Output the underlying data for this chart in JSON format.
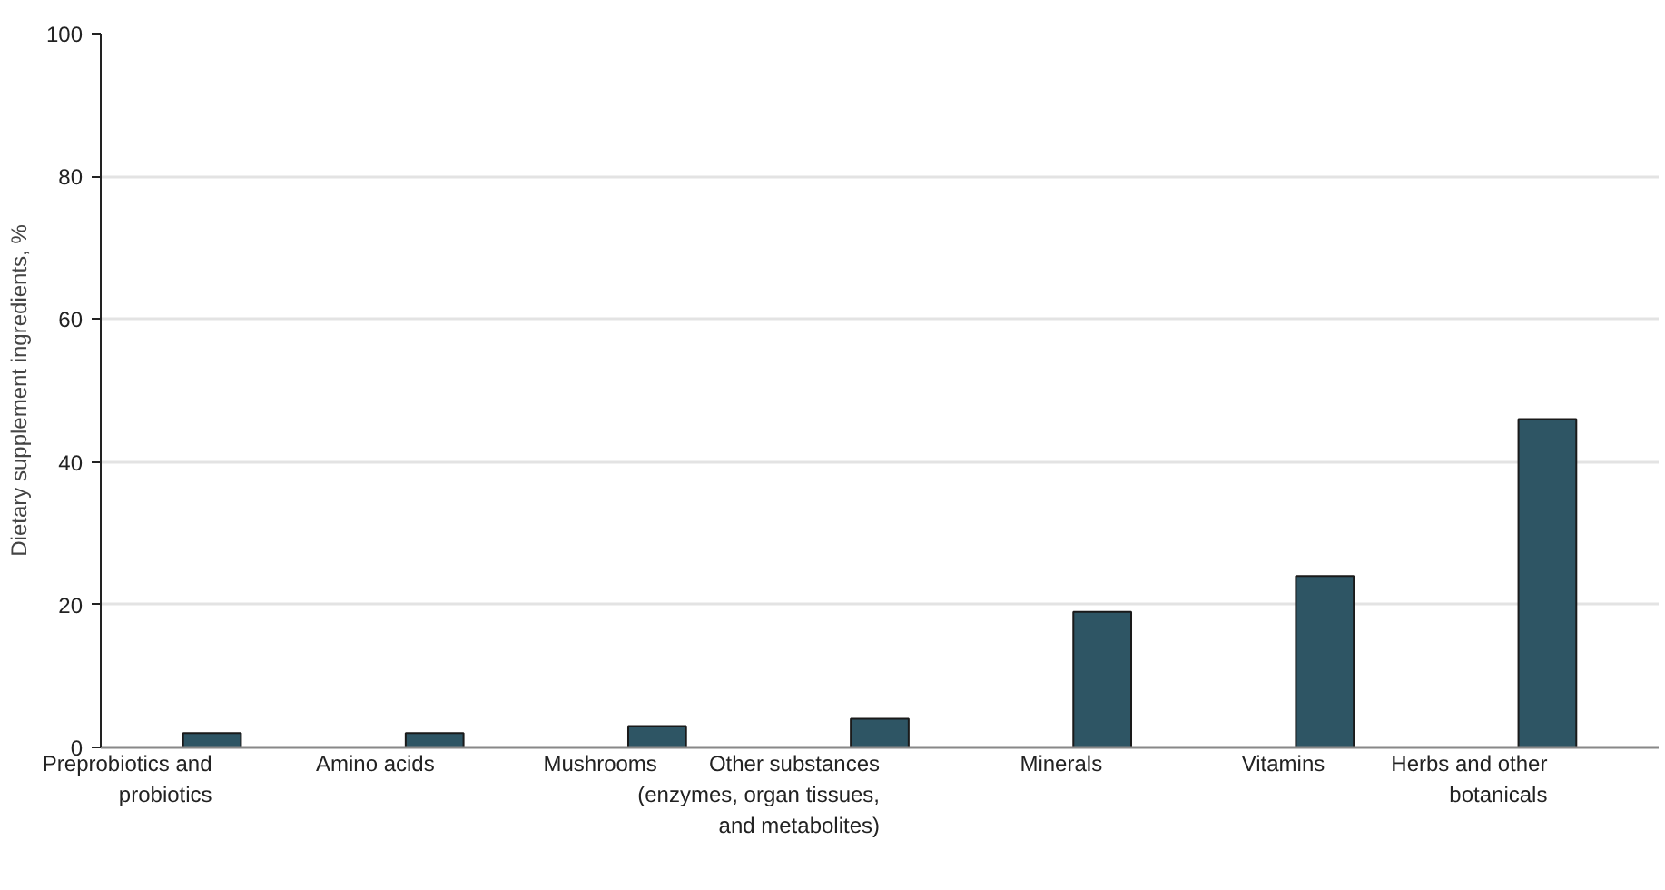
{
  "chart_data": {
    "type": "bar",
    "ylabel": "Dietary supplement ingredients, %",
    "categories": [
      "Preprobiotics and probiotics",
      "Amino acids",
      "Mushrooms",
      "Other substances (enzymes, organ tissues, and metabolites)",
      "Minerals",
      "Vitamins",
      "Herbs and other botanicals"
    ],
    "values": [
      2,
      2,
      3,
      4,
      19,
      24,
      46
    ],
    "color": "#2e5564",
    "ylim": [
      0,
      100
    ],
    "yticks": [
      0,
      20,
      40,
      60,
      80,
      100
    ],
    "grid": "y"
  }
}
